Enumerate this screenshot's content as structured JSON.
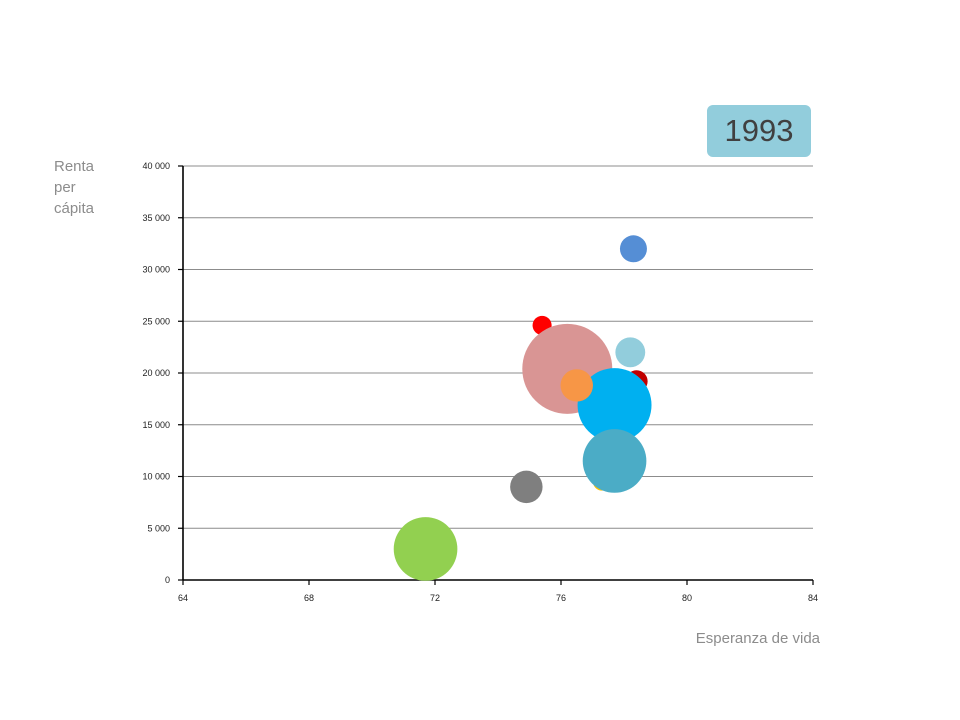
{
  "year_badge": "1993",
  "chart_data": {
    "type": "scatter",
    "variant": "bubble",
    "title": "",
    "xlabel": "Esperanza de vida",
    "ylabel": "Renta per cápita",
    "xlim": [
      64,
      84
    ],
    "ylim": [
      0,
      40000
    ],
    "x_ticks": [
      64,
      68,
      72,
      76,
      80,
      84
    ],
    "x_tick_labels": [
      "64",
      "68",
      "72",
      "76",
      "80",
      "84"
    ],
    "y_ticks": [
      0,
      5000,
      10000,
      15000,
      20000,
      25000,
      30000,
      35000,
      40000
    ],
    "y_tick_labels": [
      "0",
      "5 000",
      "10 000",
      "15 000",
      "20 000",
      "25 000",
      "30 000",
      "35 000",
      "40 000"
    ],
    "grid": "horizontal",
    "legend": "none",
    "series": [
      {
        "x": 71.7,
        "y": 3000,
        "size": 1.0,
        "color": "#92d050"
      },
      {
        "x": 74.9,
        "y": 9000,
        "size": 0.26,
        "color": "#7f7f7f"
      },
      {
        "x": 75.4,
        "y": 24600,
        "size": 0.09,
        "color": "#ff0000"
      },
      {
        "x": 76.2,
        "y": 20400,
        "size": 2.0,
        "color": "#d99594"
      },
      {
        "x": 78.4,
        "y": 19200,
        "size": 0.12,
        "color": "#c00000"
      },
      {
        "x": 77.3,
        "y": 9500,
        "size": 0.08,
        "color": "#ffc000"
      },
      {
        "x": 77.7,
        "y": 16900,
        "size": 1.35,
        "color": "#00b0f0"
      },
      {
        "x": 78.3,
        "y": 32000,
        "size": 0.18,
        "color": "#558ed5"
      },
      {
        "x": 78.2,
        "y": 22000,
        "size": 0.22,
        "color": "#92cddc"
      },
      {
        "x": 76.5,
        "y": 18800,
        "size": 0.26,
        "color": "#f79646"
      },
      {
        "x": 77.7,
        "y": 11500,
        "size": 1.0,
        "color": "#4bacc6"
      }
    ]
  }
}
